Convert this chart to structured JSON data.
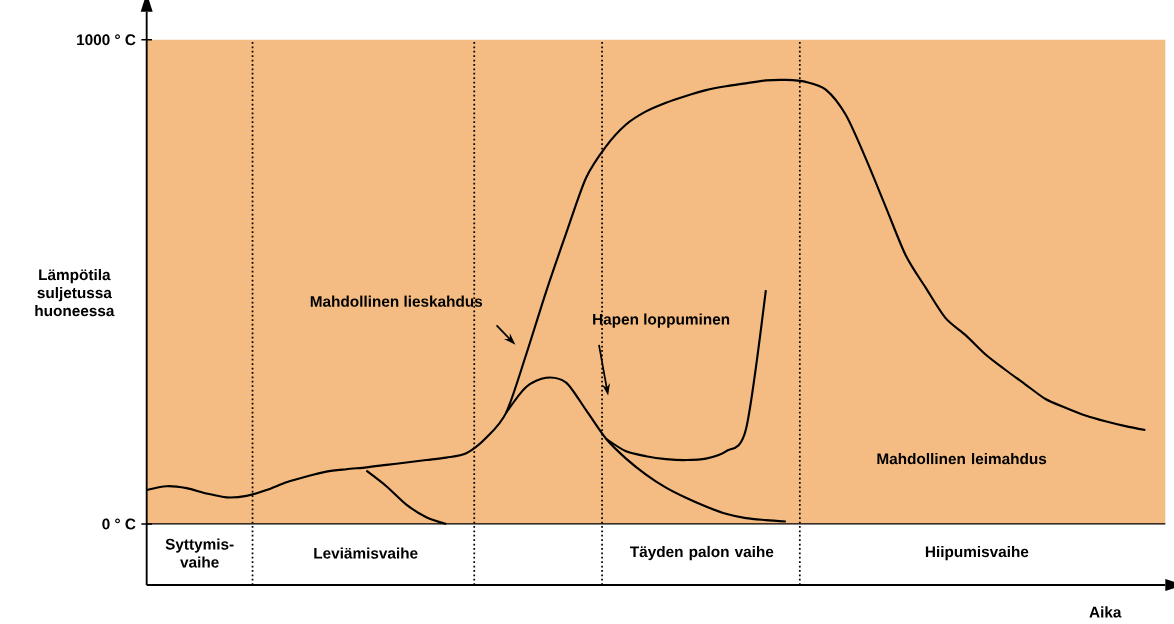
{
  "chart_data": {
    "type": "line",
    "ylabel": "Lämpötila suljetussa huoneessa",
    "xlabel": "Aika",
    "ylim": [
      -126,
      1058
    ],
    "yticks": [
      {
        "value": 0,
        "label": "0 ° C"
      },
      {
        "value": 1000,
        "label": "1000 ° C"
      }
    ],
    "tick_labels": "y",
    "categories": [
      null,
      null,
      null,
      null,
      null,
      null,
      null,
      null,
      null,
      null,
      null,
      null,
      null,
      null,
      null,
      null,
      null,
      null,
      null,
      null,
      null,
      null,
      null,
      null,
      null,
      null,
      null,
      null,
      null,
      null,
      null,
      null,
      null,
      null,
      null,
      null,
      null,
      null,
      null,
      null,
      null,
      null,
      null,
      null,
      null,
      null,
      null,
      null,
      null,
      null,
      null
    ],
    "series": [
      {
        "color": "#000000",
        "values": [
          70,
          78,
          74,
          63,
          55,
          58,
          70,
          86,
          98,
          108,
          113,
          117,
          122,
          127,
          132,
          137,
          146,
          178,
          230,
          350,
          480,
          600,
          715,
          780,
          825,
          852,
          870,
          884,
          896,
          904,
          910,
          916,
          917,
          913,
          897,
          845,
          755,
          655,
          555,
          488,
          425,
          390,
          350,
          318,
          288,
          258,
          240,
          224,
          212,
          202,
          194
        ]
      },
      {
        "color": "#000000",
        "values": [
          null,
          null,
          null,
          null,
          null,
          null,
          null,
          null,
          null,
          null,
          null,
          110,
          78,
          40,
          14,
          0,
          null,
          null,
          null,
          null,
          null,
          null,
          null,
          null,
          null,
          null,
          null,
          null,
          null,
          null,
          null,
          null,
          null,
          null,
          null,
          null,
          null,
          null,
          null,
          null,
          null,
          null,
          null,
          null,
          null,
          null,
          null,
          null,
          null,
          null,
          null
        ]
      },
      {
        "color": "#000000",
        "values": [
          null,
          null,
          null,
          null,
          null,
          null,
          null,
          null,
          null,
          null,
          null,
          null,
          null,
          null,
          null,
          null,
          null,
          null,
          230,
          283,
          302,
          292,
          235,
          176,
          135,
          102,
          75,
          54,
          36,
          21,
          12,
          8,
          5,
          null,
          null,
          null,
          null,
          null,
          null,
          null,
          null,
          null,
          null,
          null,
          null,
          null,
          null,
          null,
          null,
          null,
          null
        ]
      },
      {
        "color": "#000000",
        "values": [
          null,
          null,
          null,
          null,
          null,
          null,
          null,
          null,
          null,
          null,
          null,
          null,
          null,
          null,
          null,
          null,
          null,
          null,
          null,
          null,
          null,
          null,
          null,
          176,
          150,
          140,
          134,
          132,
          135,
          150,
          195,
          483,
          null,
          null,
          null,
          null,
          null,
          null,
          null,
          null,
          null,
          null,
          null,
          null,
          null,
          null,
          null,
          null,
          null,
          null,
          null
        ]
      }
    ],
    "ref_lines": [
      {
        "axis": "y",
        "value": 0,
        "line_style": "solid",
        "color": "#000000"
      }
    ],
    "bands": [
      {
        "axis": "y",
        "from": 0,
        "to": 1000,
        "color": "#f4bc82"
      }
    ],
    "annotations": [
      "Mahdollinen lieskahdus",
      "Hapen loppuminen",
      "Mahdollinen leimahdus",
      "Syttymis-vaihe",
      "Leviämisvaihe",
      "Täyden palon vaihe",
      "Hiipumisvaihe"
    ]
  }
}
